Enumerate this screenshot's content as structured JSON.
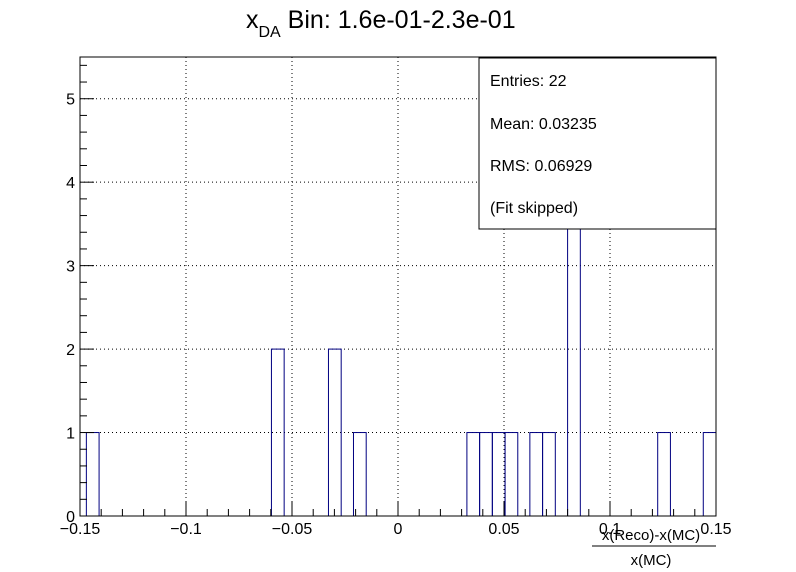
{
  "chart_data": {
    "type": "bar",
    "title_main": "x",
    "title_sub": "DA",
    "title_rest": " Bin: 1.6e-01-2.3e-01",
    "xlabel_numerator": "x(Reco)-x(MC)",
    "xlabel_denominator": "x(MC)",
    "ylabel": "",
    "xlim": [
      -0.15,
      0.15
    ],
    "ylim": [
      0,
      5.5
    ],
    "grid": true,
    "bin_width": 0.006,
    "bins": [
      {
        "x0": -0.147,
        "value": 1
      },
      {
        "x0": -0.0597,
        "value": 2
      },
      {
        "x0": -0.0328,
        "value": 2
      },
      {
        "x0": -0.021,
        "value": 1
      },
      {
        "x0": 0.0325,
        "value": 1
      },
      {
        "x0": 0.0385,
        "value": 1
      },
      {
        "x0": 0.0445,
        "value": 1
      },
      {
        "x0": 0.0505,
        "value": 1
      },
      {
        "x0": 0.0622,
        "value": 1
      },
      {
        "x0": 0.0682,
        "value": 1
      },
      {
        "x0": 0.08,
        "value": 4
      },
      {
        "x0": 0.1225,
        "value": 1
      },
      {
        "x0": 0.144,
        "value": 1
      }
    ],
    "x_ticks": [
      {
        "value": -0.15,
        "label": "−0.15"
      },
      {
        "value": -0.1,
        "label": "−0.1"
      },
      {
        "value": -0.05,
        "label": "−0.05"
      },
      {
        "value": 0,
        "label": "0"
      },
      {
        "value": 0.05,
        "label": "0.05"
      },
      {
        "value": 0.1,
        "label": "0.1"
      },
      {
        "value": 0.15,
        "label": "0.15"
      }
    ],
    "y_ticks": [
      {
        "value": 0,
        "label": "0"
      },
      {
        "value": 1,
        "label": "1"
      },
      {
        "value": 2,
        "label": "2"
      },
      {
        "value": 3,
        "label": "3"
      },
      {
        "value": 4,
        "label": "4"
      },
      {
        "value": 5,
        "label": "5"
      }
    ],
    "line_color": "#000080",
    "stats": {
      "entries": "Entries: 22",
      "mean": "Mean: 0.03235",
      "rms": "RMS: 0.06929",
      "fit": "(Fit skipped)"
    }
  }
}
